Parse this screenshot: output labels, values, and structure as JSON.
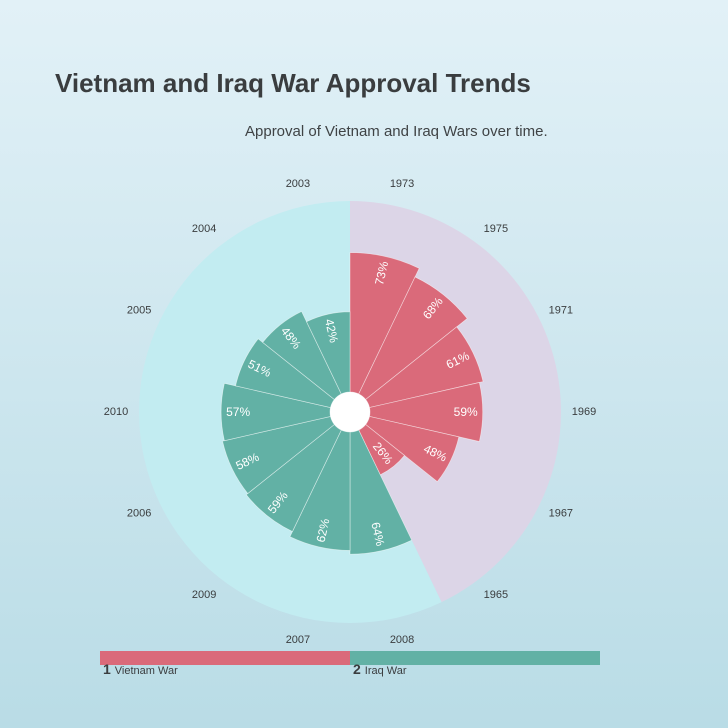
{
  "title": "Vietnam and Iraq War Approval Trends",
  "subtitle": "Approval of Vietnam and Iraq Wars over time.",
  "colors": {
    "vietnam": "#da6a7a",
    "iraq": "#62b1a5",
    "vietnam_bg": "#dcd5e7",
    "iraq_bg": "#c2ecf1"
  },
  "chart_data": {
    "type": "radial-bar",
    "title": "Vietnam and Iraq War Approval Trends",
    "subtitle": "Approval of Vietnam and Iraq Wars over time.",
    "value_format": "percent",
    "series": [
      {
        "name": "Vietnam War",
        "categories": [
          "1973",
          "1975",
          "1971",
          "1969",
          "1967",
          "1965"
        ],
        "values": [
          73,
          68,
          61,
          59,
          48,
          26
        ]
      },
      {
        "name": "Iraq War",
        "categories": [
          "2008",
          "2007",
          "2009",
          "2006",
          "2010",
          "2005",
          "2004",
          "2003"
        ],
        "values": [
          64,
          62,
          59,
          58,
          57,
          51,
          48,
          42
        ]
      }
    ]
  },
  "legend": [
    {
      "number": "1",
      "label": "Vietnam War"
    },
    {
      "number": "2",
      "label": "Iraq War"
    }
  ]
}
